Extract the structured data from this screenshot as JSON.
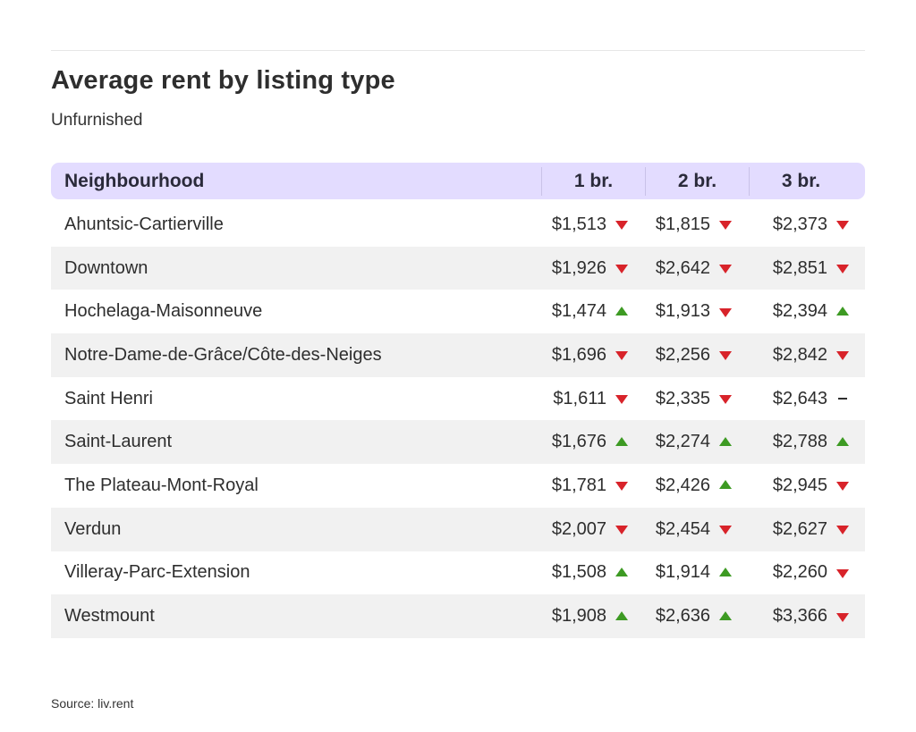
{
  "chart_data": {
    "type": "table",
    "title": "Average rent by listing type",
    "subtitle": "Unfurnished",
    "columns": [
      "Neighbourhood",
      "1 br.",
      "2 br.",
      "3 br."
    ],
    "rows": [
      {
        "name": "Ahuntsic-Cartierville",
        "values": [
          "$1,513",
          "$1,815",
          "$2,373"
        ],
        "trend": [
          "down",
          "down",
          "down"
        ]
      },
      {
        "name": "Downtown",
        "values": [
          "$1,926",
          "$2,642",
          "$2,851"
        ],
        "trend": [
          "down",
          "down",
          "down"
        ]
      },
      {
        "name": "Hochelaga-Maisonneuve",
        "values": [
          "$1,474",
          "$1,913",
          "$2,394"
        ],
        "trend": [
          "up",
          "down",
          "up"
        ]
      },
      {
        "name": "Notre-Dame-de-Grâce/Côte-des-Neiges",
        "values": [
          "$1,696",
          "$2,256",
          "$2,842"
        ],
        "trend": [
          "down",
          "down",
          "down"
        ]
      },
      {
        "name": "Saint Henri",
        "values": [
          "$1,611",
          "$2,335",
          "$2,643"
        ],
        "trend": [
          "down",
          "down",
          "flat"
        ]
      },
      {
        "name": "Saint-Laurent",
        "values": [
          "$1,676",
          "$2,274",
          "$2,788"
        ],
        "trend": [
          "up",
          "up",
          "up"
        ]
      },
      {
        "name": "The Plateau-Mont-Royal",
        "values": [
          "$1,781",
          "$2,426",
          "$2,945"
        ],
        "trend": [
          "down",
          "up",
          "down"
        ]
      },
      {
        "name": "Verdun",
        "values": [
          "$2,007",
          "$2,454",
          "$2,627"
        ],
        "trend": [
          "down",
          "down",
          "down"
        ]
      },
      {
        "name": "Villeray-Parc-Extension",
        "values": [
          "$1,508",
          "$1,914",
          "$2,260"
        ],
        "trend": [
          "up",
          "up",
          "down"
        ]
      },
      {
        "name": "Westmount",
        "values": [
          "$1,908",
          "$2,636",
          "$3,366"
        ],
        "trend": [
          "up",
          "up",
          "down"
        ]
      }
    ],
    "colors": {
      "header_bg": "#e3dcff",
      "up": "#3d9a23",
      "down": "#d8232a",
      "alt_row": "#f1f1f1"
    }
  },
  "source": "Source: liv.rent"
}
